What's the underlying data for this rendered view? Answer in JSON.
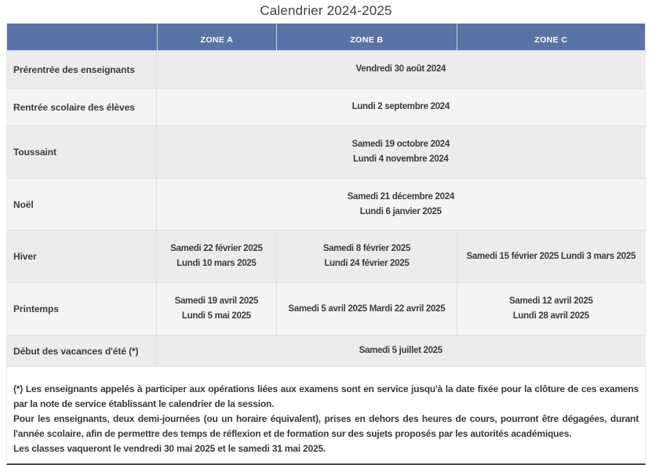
{
  "title": "Calendrier 2024-2025",
  "colors": {
    "header_background": "#5b73a4",
    "row_stripe_dark": "#ececec",
    "row_stripe_light": "#f4f4f4",
    "bottom_border": "#4b4b4b",
    "text": "#3c3c3c"
  },
  "table": {
    "zone_headers": [
      "ZONE A",
      "ZONE B",
      "ZONE C"
    ],
    "rows": [
      {
        "label": "Prérentrée des enseignants",
        "merged": [
          "Vendredi 30 août 2024"
        ]
      },
      {
        "label": "Rentrée scolaire des élèves",
        "merged": [
          "Lundi 2 septembre 2024"
        ]
      },
      {
        "label": "Toussaint",
        "merged": [
          "Samedi 19 octobre 2024",
          "Lundi 4 novembre 2024"
        ]
      },
      {
        "label": "Noël",
        "merged": [
          "Samedi 21 décembre 2024",
          "Lundi 6 janvier 2025"
        ]
      },
      {
        "label": "Hiver",
        "zone_a": [
          "Samedi 22 février 2025",
          "Lundi 10 mars 2025"
        ],
        "zone_b": [
          "Samedi 8 février 2025",
          "Lundi 24 février 2025"
        ],
        "zone_c": [
          "Samedi 15 février 2025 Lundi 3 mars 2025"
        ]
      },
      {
        "label": "Printemps",
        "zone_a": [
          "Samedi 19 avril 2025",
          "Lundi 5 mai 2025"
        ],
        "zone_b": [
          "Samedi 5 avril 2025 Mardi 22 avril 2025"
        ],
        "zone_c": [
          "Samedi 12 avril 2025",
          "Lundi 28 avril 2025"
        ]
      },
      {
        "label": "Début des vacances d'été (*)",
        "merged": [
          "Samedi 5 juillet 2025"
        ]
      }
    ]
  },
  "footnotes": {
    "p1": "(*) Les enseignants appelés à participer aux opérations liées aux examens sont en service jusqu'à la date fixée pour la clôture de ces examens par la note de service établissant le calendrier de la session.",
    "p2": "Pour les enseignants, deux demi-journées (ou un horaire équivalent), prises en dehors des heures de cours, pourront être dégagées, durant l'année scolaire, afin de permettre des temps de réflexion et de formation sur des sujets proposés par les autorités académiques.",
    "p3": "Les classes vaqueront le vendredi 30 mai 2025 et le samedi 31 mai 2025."
  }
}
